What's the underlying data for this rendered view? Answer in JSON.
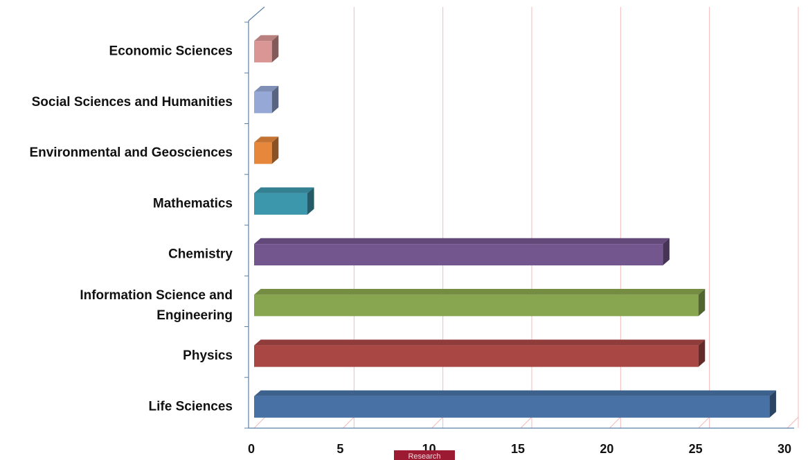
{
  "chart_data": {
    "type": "bar",
    "orientation": "horizontal",
    "style": "3d",
    "categories": [
      "Economic Sciences",
      "Social Sciences and Humanities",
      "Environmental and Geosciences",
      "Mathematics",
      "Chemistry",
      "Information Science and Engineering",
      "Physics",
      "Life Sciences"
    ],
    "values": [
      1,
      1,
      1,
      3,
      23,
      25,
      25,
      29
    ],
    "colors": [
      "#d99694",
      "#95a8d6",
      "#e6873c",
      "#3c97ad",
      "#74568f",
      "#88a64f",
      "#a94744",
      "#4872a6"
    ],
    "xlim": [
      0,
      30
    ],
    "xticks": [
      0,
      5,
      10,
      15,
      20,
      25,
      30
    ],
    "grid": true,
    "gridline_color": "#f4b8b8",
    "title": "",
    "xlabel": "",
    "ylabel": ""
  },
  "watermark_text": "Research"
}
